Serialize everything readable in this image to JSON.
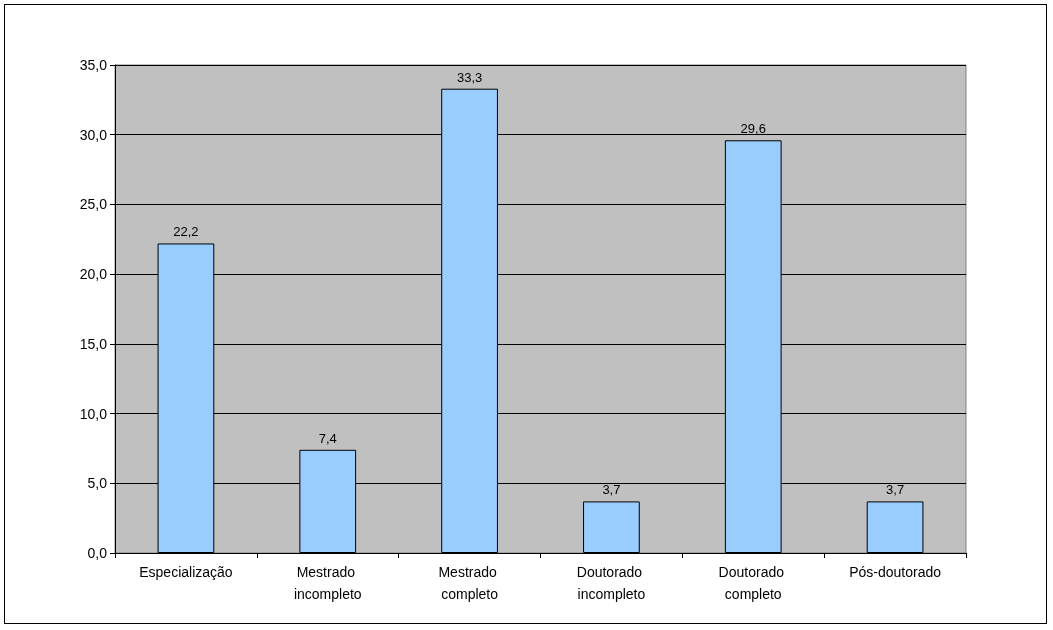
{
  "chart_data": {
    "type": "bar",
    "categories": [
      "Especialização",
      "Mestrado incompleto",
      "Mestrado completo",
      "Doutorado incompleto",
      "Doutorado completo",
      "Pós-doutorado"
    ],
    "values": [
      22.2,
      7.4,
      33.3,
      3.7,
      29.6,
      3.7
    ],
    "value_labels": [
      "22,2",
      "7,4",
      "33,3",
      "3,7",
      "29,6",
      "3,7"
    ],
    "color": "#99ccff",
    "ylim": [
      0,
      35
    ],
    "yticks": [
      {
        "value": 0,
        "label": "0,0"
      },
      {
        "value": 5,
        "label": "5,0"
      },
      {
        "value": 10,
        "label": "10,0"
      },
      {
        "value": 15,
        "label": "15,0"
      },
      {
        "value": 20,
        "label": "20,0"
      },
      {
        "value": 25,
        "label": "25,0"
      },
      {
        "value": 30,
        "label": "30,0"
      },
      {
        "value": 35,
        "label": "35,0"
      }
    ],
    "grid": "y"
  }
}
